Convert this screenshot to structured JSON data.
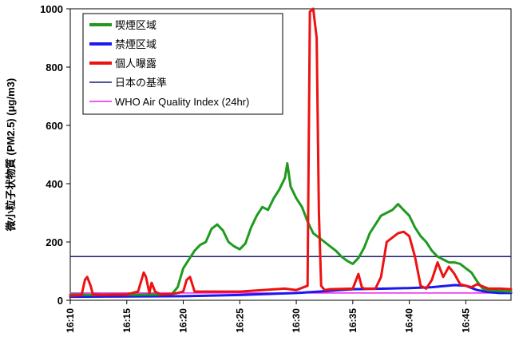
{
  "chart_data": {
    "type": "line",
    "title": "",
    "xlabel": "",
    "ylabel": "微小粒子状物質 (PM2.5) (μg/m3)",
    "ylim": [
      0,
      1000
    ],
    "yticks": [
      0,
      200,
      400,
      600,
      800,
      1000
    ],
    "xlim": [
      "16:10",
      "16:49"
    ],
    "xticks": [
      "16:10",
      "16:15",
      "16:20",
      "16:25",
      "16:30",
      "16:35",
      "16:40",
      "16:45"
    ],
    "grid": false,
    "legend_position": "top-left",
    "series": [
      {
        "name": "喫煙区域",
        "color": "#1f9a1f",
        "style": "thick",
        "x": [
          "16:10",
          "16:12",
          "16:14",
          "16:16",
          "16:18",
          "16:19",
          "16:19.5",
          "16:20",
          "16:20.5",
          "16:21",
          "16:21.5",
          "16:22",
          "16:22.5",
          "16:23",
          "16:23.5",
          "16:24",
          "16:24.5",
          "16:25",
          "16:25.5",
          "16:26",
          "16:26.5",
          "16:27",
          "16:27.5",
          "16:28",
          "16:28.5",
          "16:29",
          "16:29.2",
          "16:29.5",
          "16:30",
          "16:30.5",
          "16:31",
          "16:31.5",
          "16:32",
          "16:32.5",
          "16:33",
          "16:33.5",
          "16:34",
          "16:34.5",
          "16:35",
          "16:35.5",
          "16:36",
          "16:36.5",
          "16:37",
          "16:37.5",
          "16:38",
          "16:38.5",
          "16:39",
          "16:39.5",
          "16:40",
          "16:40.5",
          "16:41",
          "16:41.5",
          "16:42",
          "16:42.5",
          "16:43",
          "16:43.5",
          "16:44",
          "16:44.5",
          "16:45",
          "16:45.5",
          "16:46",
          "16:46.5",
          "16:47",
          "16:48",
          "16:49"
        ],
        "y": [
          20,
          18,
          20,
          19,
          20,
          22,
          45,
          110,
          140,
          170,
          190,
          200,
          245,
          260,
          240,
          200,
          185,
          175,
          195,
          250,
          290,
          320,
          310,
          350,
          380,
          420,
          470,
          390,
          350,
          320,
          270,
          230,
          215,
          200,
          185,
          170,
          150,
          135,
          125,
          145,
          180,
          230,
          260,
          290,
          300,
          310,
          330,
          310,
          290,
          250,
          220,
          200,
          170,
          150,
          140,
          130,
          130,
          125,
          110,
          95,
          65,
          40,
          35,
          32,
          30
        ]
      },
      {
        "name": "禁煙区域",
        "color": "#1a1aee",
        "style": "thick",
        "x": [
          "16:10",
          "16:15",
          "16:20",
          "16:25",
          "16:30",
          "16:32",
          "16:35",
          "16:38",
          "16:40",
          "16:42",
          "16:44",
          "16:45",
          "16:46",
          "16:47",
          "16:48",
          "16:49"
        ],
        "y": [
          12,
          13,
          14,
          18,
          25,
          30,
          38,
          40,
          42,
          45,
          52,
          50,
          35,
          28,
          25,
          25
        ]
      },
      {
        "name": "個人曝露",
        "color": "#ee1111",
        "style": "thick",
        "x": [
          "16:10",
          "16:11",
          "16:11.3",
          "16:11.5",
          "16:11.8",
          "16:12",
          "16:13",
          "16:15",
          "16:16",
          "16:16.5",
          "16:16.7",
          "16:17",
          "16:17.2",
          "16:17.5",
          "16:18",
          "16:19",
          "16:19.5",
          "16:20",
          "16:20.3",
          "16:20.6",
          "16:21",
          "16:23",
          "16:25",
          "16:27",
          "16:29",
          "16:30",
          "16:31",
          "16:31.2",
          "16:31.5",
          "16:31.8",
          "16:32",
          "16:32.2",
          "16:32.5",
          "16:33",
          "16:35",
          "16:35.5",
          "16:35.8",
          "16:36",
          "16:37",
          "16:37.5",
          "16:38",
          "16:38.5",
          "16:39",
          "16:39.5",
          "16:40",
          "16:40.5",
          "16:41",
          "16:41.5",
          "16:42",
          "16:42.5",
          "16:43",
          "16:43.5",
          "16:44",
          "16:44.5",
          "16:45",
          "16:45.5",
          "16:46",
          "16:47",
          "16:48",
          "16:49"
        ],
        "y": [
          15,
          18,
          70,
          80,
          50,
          20,
          18,
          20,
          30,
          95,
          80,
          25,
          60,
          30,
          20,
          22,
          25,
          30,
          70,
          80,
          30,
          30,
          30,
          35,
          40,
          35,
          50,
          990,
          1000,
          900,
          300,
          50,
          35,
          38,
          40,
          90,
          45,
          40,
          40,
          80,
          200,
          215,
          230,
          235,
          220,
          150,
          50,
          40,
          70,
          130,
          80,
          115,
          90,
          55,
          50,
          45,
          55,
          40,
          40,
          38
        ]
      },
      {
        "name": "日本の基準",
        "color": "#1c1c7a",
        "style": "thin",
        "x": [
          "16:10",
          "16:49"
        ],
        "y": [
          150,
          150
        ]
      },
      {
        "name": "WHO Air Quality Index (24hr)",
        "color": "#ee22ee",
        "style": "thin",
        "x": [
          "16:10",
          "16:49"
        ],
        "y": [
          25,
          25
        ]
      }
    ]
  }
}
